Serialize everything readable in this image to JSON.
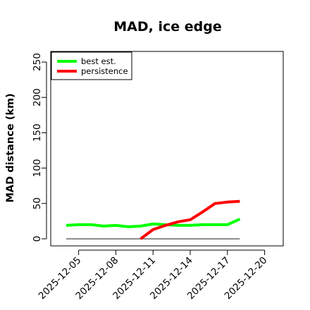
{
  "chart_data": {
    "type": "line",
    "title": "MAD, ice edge",
    "xlabel": "",
    "ylabel": "MAD distance (km)",
    "ylim": [
      -10,
      265
    ],
    "xlim": [
      "2025-12-02T18:00",
      "2025-12-21T12:00"
    ],
    "yticks": [
      0,
      50,
      100,
      150,
      200,
      250
    ],
    "xticks": [
      "2025-12-05",
      "2025-12-08",
      "2025-12-11",
      "2025-12-14",
      "2025-12-17",
      "2025-12-20"
    ],
    "grid": false,
    "legend_position": "top-left",
    "series": [
      {
        "name": "best est.",
        "color": "#00ff00",
        "points": [
          {
            "x": "2025-12-04",
            "y": 19
          },
          {
            "x": "2025-12-05",
            "y": 20
          },
          {
            "x": "2025-12-06",
            "y": 20
          },
          {
            "x": "2025-12-07",
            "y": 18
          },
          {
            "x": "2025-12-08",
            "y": 19
          },
          {
            "x": "2025-12-09",
            "y": 17
          },
          {
            "x": "2025-12-10",
            "y": 18
          },
          {
            "x": "2025-12-11",
            "y": 21
          },
          {
            "x": "2025-12-12",
            "y": 20
          },
          {
            "x": "2025-12-13",
            "y": 19
          },
          {
            "x": "2025-12-14",
            "y": 19
          },
          {
            "x": "2025-12-15",
            "y": 20
          },
          {
            "x": "2025-12-16",
            "y": 20
          },
          {
            "x": "2025-12-17",
            "y": 20
          },
          {
            "x": "2025-12-18",
            "y": 28
          }
        ]
      },
      {
        "name": "persistence",
        "color": "#ff0000",
        "points": [
          {
            "x": "2025-12-10",
            "y": 0
          },
          {
            "x": "2025-12-11",
            "y": 13
          },
          {
            "x": "2025-12-12",
            "y": 19
          },
          {
            "x": "2025-12-13",
            "y": 24
          },
          {
            "x": "2025-12-14",
            "y": 27
          },
          {
            "x": "2025-12-15",
            "y": 38
          },
          {
            "x": "2025-12-16",
            "y": 50
          },
          {
            "x": "2025-12-17",
            "y": 52
          },
          {
            "x": "2025-12-18",
            "y": 53
          }
        ]
      }
    ],
    "reference_line": {
      "color": "#666666",
      "y": 0,
      "x_start": "2025-12-04",
      "x_end": "2025-12-18"
    }
  }
}
